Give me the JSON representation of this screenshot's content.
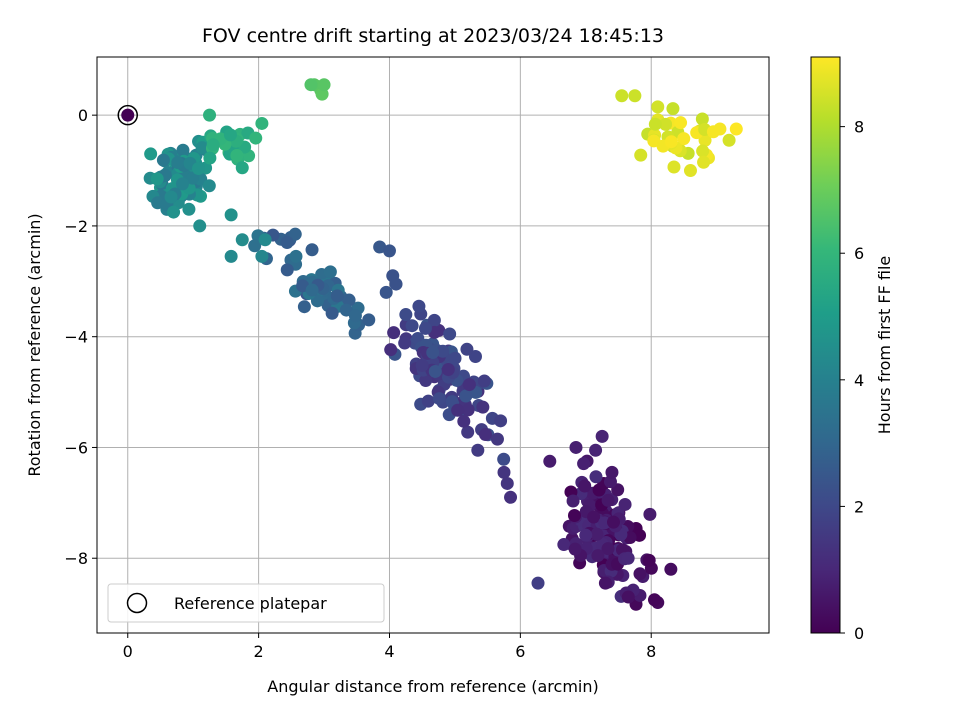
{
  "chart_data": {
    "type": "scatter",
    "title": "FOV centre drift starting at 2023/03/24 18:45:13",
    "xlabel": "Angular distance from reference (arcmin)",
    "ylabel": "Rotation from reference (arcmin)",
    "xlim": [
      -0.47,
      9.8
    ],
    "ylim": [
      -9.35,
      1.05
    ],
    "x_ticks": [
      0,
      2,
      4,
      6,
      8
    ],
    "x_tick_labels": [
      "0",
      "2",
      "4",
      "6",
      "8"
    ],
    "y_ticks": [
      0,
      -2,
      -4,
      -6,
      -8
    ],
    "y_tick_labels": [
      "0",
      "−2",
      "−4",
      "−6",
      "−8"
    ],
    "grid": true,
    "colorbar": {
      "label": "Hours from first FF file",
      "range": [
        0,
        9.1
      ],
      "ticks": [
        0,
        2,
        4,
        6,
        8
      ],
      "tick_labels": [
        "0",
        "2",
        "4",
        "6",
        "8"
      ],
      "colormap": "viridis"
    },
    "legend": {
      "label": "Reference platepar",
      "placement": "lower-left"
    },
    "reference_point": {
      "x": 0,
      "y": 0
    },
    "clusters": [
      {
        "name": "",
        "hours": [
          0.0,
          1.2
        ],
        "cx": 7.3,
        "cy": -7.5,
        "sx": 0.42,
        "sy": 0.65,
        "n": 150,
        "seed": 11
      },
      {
        "name": "",
        "hours": [
          1.2,
          2.4
        ],
        "cx": 4.85,
        "cy": -4.7,
        "sx": 0.5,
        "sy": 0.48,
        "n": 110,
        "seed": 23
      },
      {
        "name": "",
        "hours": [
          2.4,
          3.6
        ],
        "cx": 2.9,
        "cy": -3.1,
        "sx": 0.55,
        "sy": 0.35,
        "n": 55,
        "seed": 37
      },
      {
        "name": "",
        "hours": [
          3.6,
          5.0
        ],
        "cx": 0.8,
        "cy": -1.05,
        "sx": 0.28,
        "sy": 0.5,
        "n": 75,
        "seed": 41
      },
      {
        "name": "",
        "hours": [
          5.2,
          6.2
        ],
        "cx": 1.55,
        "cy": -0.45,
        "sx": 0.3,
        "sy": 0.28,
        "n": 22,
        "seed": 53
      },
      {
        "name": "",
        "hours": [
          8.3,
          9.1
        ],
        "cx": 8.3,
        "cy": -0.45,
        "sx": 0.5,
        "sy": 0.3,
        "n": 32,
        "seed": 67
      }
    ],
    "points": [
      {
        "x": 2.85,
        "y": 0.55,
        "h": 6.7
      },
      {
        "x": 2.95,
        "y": 0.45,
        "h": 6.7
      },
      {
        "x": 2.97,
        "y": 0.38,
        "h": 6.8
      },
      {
        "x": 2.8,
        "y": 0.55,
        "h": 6.6
      },
      {
        "x": 3.0,
        "y": 0.55,
        "h": 6.7
      },
      {
        "x": 3.85,
        "y": -2.38,
        "h": 2.5
      },
      {
        "x": 4.0,
        "y": -2.45,
        "h": 2.4
      },
      {
        "x": 4.05,
        "y": -2.9,
        "h": 2.3
      },
      {
        "x": 4.1,
        "y": -3.05,
        "h": 2.3
      },
      {
        "x": 3.95,
        "y": -3.2,
        "h": 2.4
      },
      {
        "x": 1.58,
        "y": -1.8,
        "h": 4.6
      },
      {
        "x": 1.1,
        "y": -2.0,
        "h": 4.5
      },
      {
        "x": 1.75,
        "y": -2.25,
        "h": 4.4
      },
      {
        "x": 2.1,
        "y": -2.25,
        "h": 4.3
      },
      {
        "x": 1.58,
        "y": -2.55,
        "h": 4.3
      },
      {
        "x": 2.05,
        "y": -2.55,
        "h": 4.2
      },
      {
        "x": 0.35,
        "y": -0.7,
        "h": 4.9
      },
      {
        "x": 0.45,
        "y": -1.15,
        "h": 4.8
      },
      {
        "x": 0.7,
        "y": -1.75,
        "h": 4.6
      },
      {
        "x": 1.25,
        "y": -0.0,
        "h": 5.8
      },
      {
        "x": 1.75,
        "y": -0.95,
        "h": 5.4
      },
      {
        "x": 2.05,
        "y": -0.15,
        "h": 5.9
      },
      {
        "x": 5.75,
        "y": -6.45,
        "h": 1.4
      },
      {
        "x": 5.85,
        "y": -6.9,
        "h": 1.3
      },
      {
        "x": 5.8,
        "y": -6.65,
        "h": 1.4
      },
      {
        "x": 6.27,
        "y": -8.45,
        "h": 1.7
      },
      {
        "x": 7.25,
        "y": -5.8,
        "h": 0.9
      },
      {
        "x": 6.85,
        "y": -6.0,
        "h": 0.8
      },
      {
        "x": 7.15,
        "y": -6.05,
        "h": 0.9
      },
      {
        "x": 7.4,
        "y": -6.45,
        "h": 0.6
      },
      {
        "x": 6.45,
        "y": -6.25,
        "h": 0.7
      },
      {
        "x": 8.1,
        "y": -8.8,
        "h": 0.2
      },
      {
        "x": 8.05,
        "y": -8.75,
        "h": 0.1
      },
      {
        "x": 8.3,
        "y": -8.2,
        "h": 0.3
      },
      {
        "x": 7.65,
        "y": -8.7,
        "h": 0.4
      },
      {
        "x": 7.3,
        "y": -8.45,
        "h": 0.5
      },
      {
        "x": 5.35,
        "y": -6.05,
        "h": 1.6
      },
      {
        "x": 5.65,
        "y": -5.85,
        "h": 1.5
      },
      {
        "x": 5.45,
        "y": -4.8,
        "h": 1.7
      },
      {
        "x": 4.45,
        "y": -3.45,
        "h": 2.0
      },
      {
        "x": 4.25,
        "y": -3.6,
        "h": 2.1
      },
      {
        "x": 4.55,
        "y": -3.85,
        "h": 2.0
      },
      {
        "x": 7.55,
        "y": 0.35,
        "h": 8.4
      },
      {
        "x": 7.75,
        "y": 0.35,
        "h": 8.4
      },
      {
        "x": 8.1,
        "y": 0.15,
        "h": 8.5
      },
      {
        "x": 8.6,
        "y": -1.0,
        "h": 8.7
      },
      {
        "x": 8.8,
        "y": -0.85,
        "h": 8.7
      },
      {
        "x": 9.3,
        "y": -0.25,
        "h": 9.1
      },
      {
        "x": 8.95,
        "y": -0.3,
        "h": 9.0
      },
      {
        "x": 9.05,
        "y": -0.25,
        "h": 9.0
      }
    ]
  }
}
